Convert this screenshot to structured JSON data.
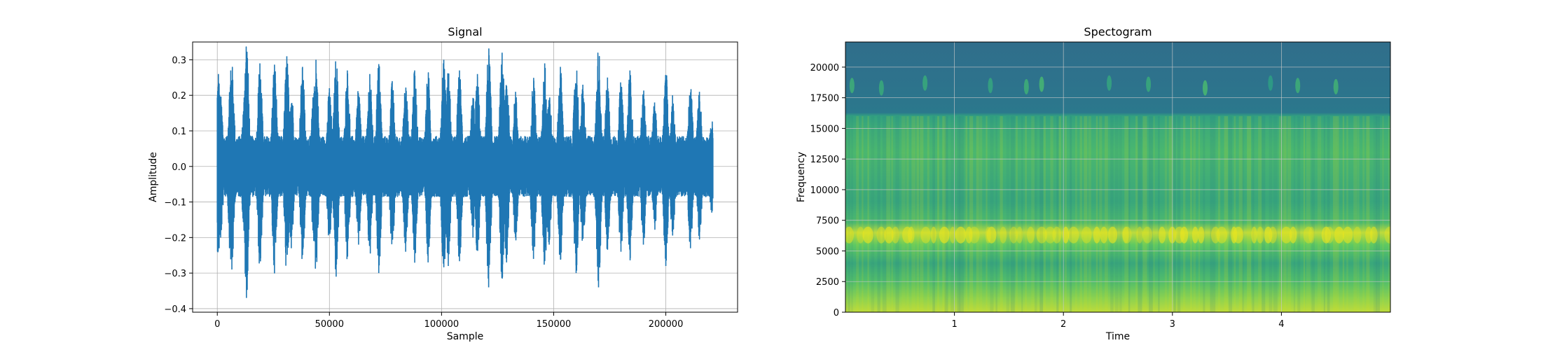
{
  "chart_data": [
    {
      "type": "line",
      "title": "Signal",
      "xlabel": "Sample",
      "ylabel": "Amplitude",
      "xlim": [
        -11000,
        232000
      ],
      "ylim": [
        -0.41,
        0.35
      ],
      "grid": true,
      "x_ticks": [
        0,
        50000,
        100000,
        150000,
        200000
      ],
      "x_tick_labels": [
        "0",
        "50000",
        "100000",
        "150000",
        "200000"
      ],
      "y_ticks": [
        -0.4,
        -0.3,
        -0.2,
        -0.1,
        0.0,
        0.1,
        0.2,
        0.3
      ],
      "y_tick_labels": [
        "−0.4",
        "−0.3",
        "−0.2",
        "−0.1",
        "0.0",
        "0.1",
        "0.2",
        "0.3"
      ],
      "color": "#1f77b4",
      "series": [
        {
          "x_start": 0,
          "x_end": 221000,
          "peaks": [
            {
              "x": 500,
              "value": 0.26
            },
            {
              "x": 1500,
              "value": -0.2
            },
            {
              "x": 6000,
              "value": 0.27
            },
            {
              "x": 6500,
              "value": -0.29
            },
            {
              "x": 12000,
              "value": 0.18
            },
            {
              "x": 13000,
              "value": -0.37
            },
            {
              "x": 19000,
              "value": 0.29
            },
            {
              "x": 25500,
              "value": -0.3
            },
            {
              "x": 31000,
              "value": 0.31
            },
            {
              "x": 33000,
              "value": -0.23
            },
            {
              "x": 38000,
              "value": 0.28
            },
            {
              "x": 43000,
              "value": -0.21
            },
            {
              "x": 44000,
              "value": 0.3
            },
            {
              "x": 50000,
              "value": 0.22
            },
            {
              "x": 53000,
              "value": -0.31
            },
            {
              "x": 58000,
              "value": 0.27
            },
            {
              "x": 63000,
              "value": -0.22
            },
            {
              "x": 68000,
              "value": 0.26
            },
            {
              "x": 72000,
              "value": -0.3
            },
            {
              "x": 78000,
              "value": 0.24
            },
            {
              "x": 84000,
              "value": -0.24
            },
            {
              "x": 88000,
              "value": 0.27
            },
            {
              "x": 94000,
              "value": -0.27
            },
            {
              "x": 101000,
              "value": 0.3
            },
            {
              "x": 103000,
              "value": -0.28
            },
            {
              "x": 108000,
              "value": 0.27
            },
            {
              "x": 114000,
              "value": -0.2
            },
            {
              "x": 116000,
              "value": 0.26
            },
            {
              "x": 121000,
              "value": -0.34
            },
            {
              "x": 127000,
              "value": 0.32
            },
            {
              "x": 129000,
              "value": -0.27
            },
            {
              "x": 133000,
              "value": 0.21
            },
            {
              "x": 141000,
              "value": -0.26
            },
            {
              "x": 146000,
              "value": 0.29
            },
            {
              "x": 148000,
              "value": -0.22
            },
            {
              "x": 153000,
              "value": 0.28
            },
            {
              "x": 160000,
              "value": -0.3
            },
            {
              "x": 163000,
              "value": 0.23
            },
            {
              "x": 170000,
              "value": -0.34
            },
            {
              "x": 174000,
              "value": 0.25
            },
            {
              "x": 180000,
              "value": -0.24
            },
            {
              "x": 184000,
              "value": 0.27
            },
            {
              "x": 190000,
              "value": -0.22
            },
            {
              "x": 195000,
              "value": 0.18
            },
            {
              "x": 200000,
              "value": -0.28
            },
            {
              "x": 203000,
              "value": 0.2
            },
            {
              "x": 211000,
              "value": -0.23
            },
            {
              "x": 215000,
              "value": 0.21
            },
            {
              "x": 220500,
              "value": -0.13
            }
          ]
        }
      ]
    },
    {
      "type": "heatmap",
      "title": "Spectogram",
      "xlabel": "Time",
      "ylabel": "Frequency",
      "xlim": [
        0,
        5.0
      ],
      "ylim": [
        0,
        22050
      ],
      "grid": true,
      "colormap": "viridis",
      "x_ticks": [
        1,
        2,
        3,
        4
      ],
      "x_tick_labels": [
        "1",
        "2",
        "3",
        "4"
      ],
      "y_ticks": [
        0,
        2500,
        5000,
        7500,
        10000,
        12500,
        15000,
        17500,
        20000
      ],
      "y_tick_labels": [
        "0",
        "2500",
        "5000",
        "7500",
        "10000",
        "12500",
        "15000",
        "17500",
        "20000"
      ],
      "intensity_by_frequency": [
        {
          "frequency": 0,
          "level": 0.9
        },
        {
          "frequency": 1000,
          "level": 0.83
        },
        {
          "frequency": 2500,
          "level": 0.7
        },
        {
          "frequency": 4000,
          "level": 0.6
        },
        {
          "frequency": 5500,
          "level": 0.75
        },
        {
          "frequency": 6500,
          "level": 0.9
        },
        {
          "frequency": 7300,
          "level": 0.68
        },
        {
          "frequency": 9000,
          "level": 0.6
        },
        {
          "frequency": 11000,
          "level": 0.63
        },
        {
          "frequency": 13000,
          "level": 0.67
        },
        {
          "frequency": 15000,
          "level": 0.62
        },
        {
          "frequency": 16000,
          "level": 0.57
        },
        {
          "frequency": 16300,
          "level": 0.4
        },
        {
          "frequency": 18500,
          "level": 0.38
        },
        {
          "frequency": 22050,
          "level": 0.36
        }
      ],
      "bursts": [
        {
          "time": 0.06,
          "frequency": 18500,
          "level": 0.62
        },
        {
          "time": 0.33,
          "frequency": 18300,
          "level": 0.6
        },
        {
          "time": 0.73,
          "frequency": 18700,
          "level": 0.6
        },
        {
          "time": 1.33,
          "frequency": 18500,
          "level": 0.58
        },
        {
          "time": 1.66,
          "frequency": 18400,
          "level": 0.62
        },
        {
          "time": 1.8,
          "frequency": 18600,
          "level": 0.65
        },
        {
          "time": 2.42,
          "frequency": 18700,
          "level": 0.58
        },
        {
          "time": 2.78,
          "frequency": 18600,
          "level": 0.6
        },
        {
          "time": 3.3,
          "frequency": 18300,
          "level": 0.66
        },
        {
          "time": 3.9,
          "frequency": 18700,
          "level": 0.55
        },
        {
          "time": 4.15,
          "frequency": 18500,
          "level": 0.62
        },
        {
          "time": 4.5,
          "frequency": 18400,
          "level": 0.63
        }
      ]
    }
  ]
}
